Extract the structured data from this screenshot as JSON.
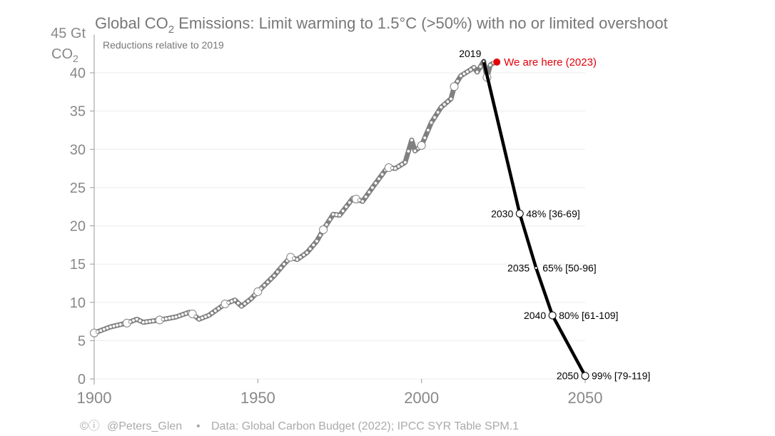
{
  "chart_data": {
    "type": "line",
    "title": "Global CO",
    "title_sub": "2",
    "title_rest": " Emissions: Limit warming to 1.5°C (>50%) with no or limited overshoot",
    "subtitle": "Reductions relative to 2019",
    "ylabel_top": "45 Gt",
    "ylabel_unit": "CO",
    "ylabel_unit_sub": "2",
    "xlim": [
      1900,
      2050
    ],
    "ylim": [
      0,
      45
    ],
    "grid": true,
    "x_ticks": [
      "1900",
      "1950",
      "2000",
      "2050"
    ],
    "y_ticks": [
      "40",
      "35",
      "30",
      "25",
      "20",
      "15",
      "10",
      "5",
      "0"
    ],
    "historical": {
      "color": "#808080",
      "x": [
        1900,
        1905,
        1910,
        1913,
        1915,
        1920,
        1925,
        1929,
        1930,
        1932,
        1935,
        1940,
        1943,
        1945,
        1948,
        1950,
        1955,
        1958,
        1960,
        1962,
        1965,
        1968,
        1970,
        1973,
        1975,
        1979,
        1980,
        1982,
        1985,
        1989,
        1990,
        1992,
        1995,
        1997,
        1998,
        2000,
        2003,
        2006,
        2009,
        2010,
        2012,
        2015,
        2016,
        2017,
        2019,
        2020,
        2021,
        2022
      ],
      "y": [
        6.0,
        6.8,
        7.3,
        7.8,
        7.4,
        7.7,
        8.1,
        8.7,
        8.5,
        7.8,
        8.3,
        9.8,
        10.3,
        9.5,
        10.5,
        11.4,
        13.5,
        15.0,
        15.9,
        15.6,
        16.5,
        18.0,
        19.5,
        21.5,
        21.4,
        23.6,
        23.5,
        23.2,
        25.0,
        27.3,
        27.6,
        27.5,
        28.3,
        31.2,
        29.8,
        30.5,
        33.5,
        35.5,
        36.6,
        38.2,
        39.6,
        40.4,
        40.7,
        40.1,
        41.5,
        39.4,
        41.0,
        41.3
      ]
    },
    "current": {
      "year": 2023,
      "value": 41.4,
      "label": "We are here (2023)",
      "color": "#e3000b"
    },
    "pathway": {
      "color": "#000000",
      "points": [
        {
          "year": 2019,
          "value": 41.5,
          "label": "2019",
          "note": ""
        },
        {
          "year": 2030,
          "value": 21.6,
          "label": "2030",
          "note": "48% [36-69]"
        },
        {
          "year": 2035,
          "value": 14.5,
          "label": "2035",
          "note": "65% [50-96]"
        },
        {
          "year": 2040,
          "value": 8.3,
          "label": "2040",
          "note": "80% [61-109]"
        },
        {
          "year": 2050,
          "value": 0.4,
          "label": "2050",
          "note": "99% [79-119]"
        }
      ]
    }
  },
  "footer": {
    "icons": [
      "creative-commons-icon",
      "attribution-icon"
    ],
    "handle": "@Peters_Glen",
    "separator": "•",
    "source": "Data: Global Carbon Budget (2022); IPCC SYR Table SPM.1"
  }
}
